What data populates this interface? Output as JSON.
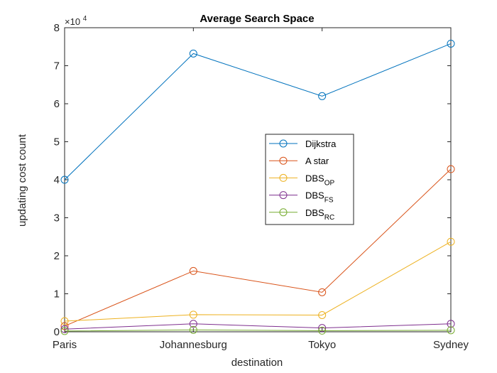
{
  "chart_data": {
    "type": "line",
    "title": "Average Search Space",
    "xlabel": "destination",
    "ylabel": "updating cost count",
    "exponent_base": "×10",
    "exponent_power": "4",
    "categories": [
      "Paris",
      "Johannesburg",
      "Tokyo",
      "Sydney"
    ],
    "y_ticks": [
      "0",
      "1",
      "2",
      "3",
      "4",
      "5",
      "6",
      "7",
      "8"
    ],
    "ylim": [
      0,
      80000
    ],
    "grid": false,
    "legend_position": "inside-center-right",
    "series": [
      {
        "name": "Dijkstra",
        "name_sub": "",
        "color": "#0072BD",
        "values": [
          40000,
          73200,
          62000,
          75800
        ]
      },
      {
        "name": "A star",
        "name_sub": "",
        "color": "#D95319",
        "values": [
          1500,
          16000,
          10400,
          42800
        ]
      },
      {
        "name": "DBS",
        "name_sub": "OP",
        "color": "#EDB120",
        "values": [
          2800,
          4500,
          4400,
          23700
        ]
      },
      {
        "name": "DBS",
        "name_sub": "FS",
        "color": "#7E2F8E",
        "values": [
          700,
          2100,
          1000,
          2100
        ]
      },
      {
        "name": "DBS",
        "name_sub": "RC",
        "color": "#77AC30",
        "values": [
          200,
          500,
          300,
          400
        ]
      }
    ]
  }
}
